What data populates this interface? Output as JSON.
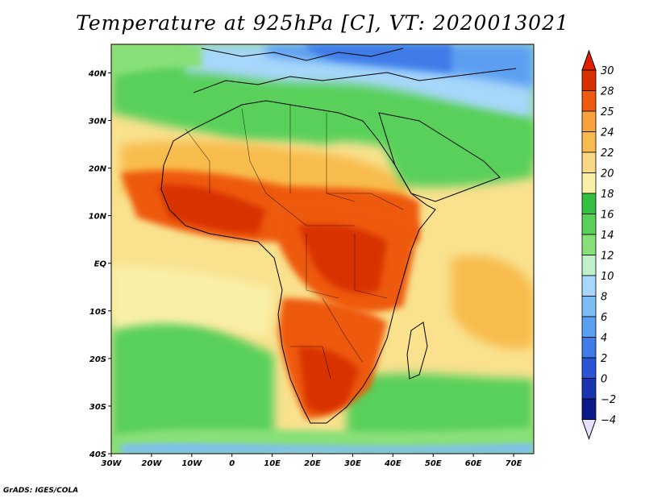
{
  "title": "Temperature at 925hPa [C], VT: 2020013021",
  "credit": "GrADS: IGES/COLA",
  "map": {
    "lon_range": [
      -30,
      75
    ],
    "lat_range": [
      -40,
      46
    ],
    "lon_ticks": [
      {
        "value": -30,
        "label": "30W"
      },
      {
        "value": -20,
        "label": "20W"
      },
      {
        "value": -10,
        "label": "10W"
      },
      {
        "value": 0,
        "label": "0"
      },
      {
        "value": 10,
        "label": "10E"
      },
      {
        "value": 20,
        "label": "20E"
      },
      {
        "value": 30,
        "label": "30E"
      },
      {
        "value": 40,
        "label": "40E"
      },
      {
        "value": 50,
        "label": "50E"
      },
      {
        "value": 60,
        "label": "60E"
      },
      {
        "value": 70,
        "label": "70E"
      }
    ],
    "lat_ticks": [
      {
        "value": 40,
        "label": "40N"
      },
      {
        "value": 30,
        "label": "30N"
      },
      {
        "value": 20,
        "label": "20N"
      },
      {
        "value": 10,
        "label": "10N"
      },
      {
        "value": 0,
        "label": "EQ"
      },
      {
        "value": -10,
        "label": "10S"
      },
      {
        "value": -20,
        "label": "20S"
      },
      {
        "value": -30,
        "label": "30S"
      },
      {
        "value": -40,
        "label": "40S"
      }
    ]
  },
  "colorbar": {
    "levels": [
      "30",
      "28",
      "25",
      "24",
      "22",
      "20",
      "18",
      "16",
      "14",
      "12",
      "10",
      "8",
      "6",
      "4",
      "2",
      "0",
      "−2",
      "−4"
    ],
    "colors": [
      "#d83000",
      "#ee5a10",
      "#f7a23a",
      "#f8bc4e",
      "#f8d883",
      "#f9f0a8",
      "#33c040",
      "#58d05a",
      "#88e078",
      "#c0f0c8",
      "#a7d7fa",
      "#7dbdf7",
      "#5b9ff2",
      "#3f7ce8",
      "#2a55d4",
      "#1a35b0",
      "#0a1a88"
    ],
    "top_color": "#e02000",
    "bottom_color": "#e8e0ff"
  }
}
